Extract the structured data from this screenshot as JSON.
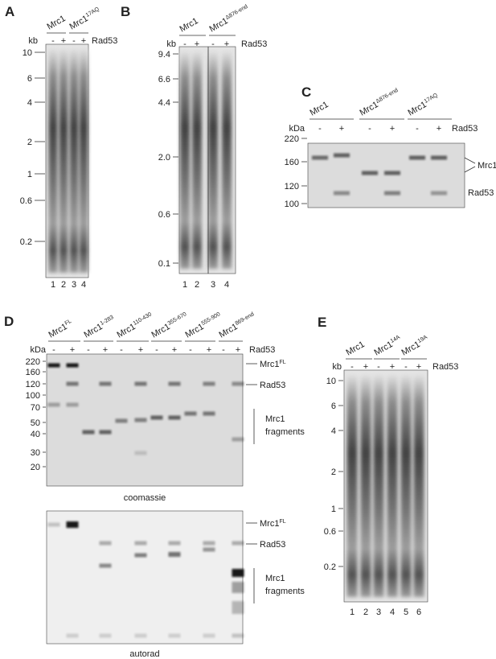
{
  "panels": {
    "A": {
      "label": "A",
      "unit": "kb",
      "treatment": "Rad53",
      "constructs": [
        {
          "name": "Mrc1"
        },
        {
          "name": "Mrc1",
          "sup": "17AQ"
        }
      ],
      "signs": [
        "-",
        "+",
        "-",
        "+"
      ],
      "markers": [
        "10",
        "6",
        "4",
        "2",
        "1",
        "0.6",
        "0.2"
      ],
      "lanes": [
        "1",
        "2",
        "3",
        "4"
      ]
    },
    "B": {
      "label": "B",
      "unit": "kb",
      "treatment": "Rad53",
      "constructs": [
        {
          "name": "Mrc1"
        },
        {
          "name": "Mrc1",
          "sup": "Δ876-end"
        }
      ],
      "signs": [
        "-",
        "+",
        "-",
        "+"
      ],
      "markers": [
        "9.4",
        "6.6",
        "4.4",
        "2.0",
        "0.6",
        "0.1"
      ],
      "lanes": [
        "1",
        "2",
        "3",
        "4"
      ]
    },
    "C": {
      "label": "C",
      "unit": "kDa",
      "treatment": "Rad53",
      "constructs": [
        {
          "name": "Mrc1"
        },
        {
          "name": "Mrc1",
          "sup": "Δ876-end"
        },
        {
          "name": "Mrc1",
          "sup": "17AQ"
        }
      ],
      "signs": [
        "-",
        "+",
        "-",
        "+",
        "-",
        "+"
      ],
      "markers": [
        "220",
        "160",
        "120",
        "100"
      ],
      "band_labels": [
        "Mrc1",
        "Rad53"
      ]
    },
    "D": {
      "label": "D",
      "unit": "kDa",
      "treatment": "Rad53",
      "constructs": [
        {
          "name": "Mrc1",
          "sup": "FL"
        },
        {
          "name": "Mrc1",
          "sup": "1-283"
        },
        {
          "name": "Mrc1",
          "sup": "110-430"
        },
        {
          "name": "Mrc1",
          "sup": "355-670"
        },
        {
          "name": "Mrc1",
          "sup": "555-900"
        },
        {
          "name": "Mrc1",
          "sup": "869-end"
        }
      ],
      "signs": [
        "-",
        "+",
        "-",
        "+",
        "-",
        "+",
        "-",
        "+",
        "-",
        "+",
        "-",
        "+"
      ],
      "markers": [
        "220",
        "160",
        "120",
        "100",
        "70",
        "50",
        "40",
        "30",
        "20"
      ],
      "coomassie": {
        "caption": "coomassie",
        "full_length": {
          "name": "Mrc1",
          "sup": "FL"
        },
        "kinase": "Rad53",
        "fragments": [
          "Mrc1",
          "fragments"
        ]
      },
      "autorad": {
        "caption": "autorad",
        "full_length": {
          "name": "Mrc1",
          "sup": "FL"
        },
        "kinase": "Rad53",
        "fragments": [
          "Mrc1",
          "fragments"
        ]
      }
    },
    "E": {
      "label": "E",
      "unit": "kb",
      "treatment": "Rad53",
      "constructs": [
        {
          "name": "Mrc1"
        },
        {
          "name": "Mrc1",
          "sup": "14A"
        },
        {
          "name": "Mrc1",
          "sup": "19A"
        }
      ],
      "signs": [
        "-",
        "+",
        "-",
        "+",
        "-",
        "+"
      ],
      "markers": [
        "10",
        "6",
        "4",
        "2",
        "1",
        "0.6",
        "0.2"
      ],
      "lanes": [
        "1",
        "2",
        "3",
        "4",
        "5",
        "6"
      ]
    }
  }
}
